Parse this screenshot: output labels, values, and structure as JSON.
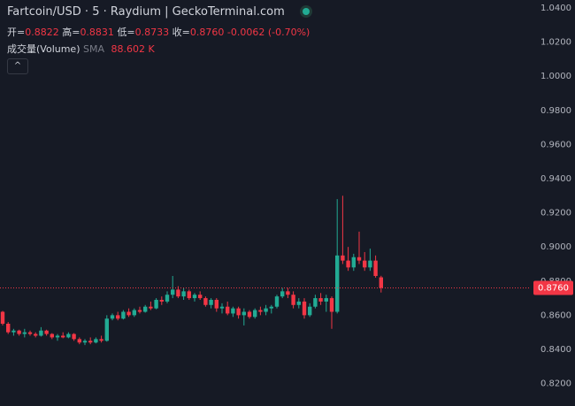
{
  "header": {
    "symbol": "Fartcoin/USD · 5 · Raydium | GeckoTerminal.com",
    "ohlc": [
      {
        "label": "开=",
        "value": "0.8822"
      },
      {
        "label": "高=",
        "value": "0.8831"
      },
      {
        "label": "低=",
        "value": "0.8733"
      },
      {
        "label": "收=",
        "value": "0.8760"
      }
    ],
    "change": "-0.0062 (-0.70%)",
    "volume_label": "成交量(Volume)",
    "sma_label": "SMA",
    "volume_value": "88.602 K"
  },
  "chart_data": {
    "type": "candlestick",
    "up_color": "#22ab94",
    "down_color": "#f23645",
    "grid": false,
    "ylim": [
      0.8068,
      1.0447
    ],
    "yticks": [
      {
        "value": 0.82,
        "label": "0.8200"
      },
      {
        "value": 0.84,
        "label": "0.8400"
      },
      {
        "value": 0.86,
        "label": "0.8600"
      },
      {
        "value": 0.88,
        "label": "0.8800"
      },
      {
        "value": 0.9,
        "label": "0.9000"
      },
      {
        "value": 0.92,
        "label": "0.9200"
      },
      {
        "value": 0.94,
        "label": "0.9400"
      },
      {
        "value": 0.96,
        "label": "0.9600"
      },
      {
        "value": 0.98,
        "label": "0.9800"
      },
      {
        "value": 1.0,
        "label": "1.0000"
      },
      {
        "value": 1.02,
        "label": "1.0200"
      },
      {
        "value": 1.04,
        "label": "1.0400"
      }
    ],
    "price_line": {
      "value": 0.876,
      "label": "0.8760",
      "color": "#f23645"
    },
    "open": [
      0.862,
      0.855,
      0.85,
      0.851,
      0.849,
      0.85,
      0.849,
      0.848,
      0.851,
      0.849,
      0.847,
      0.848,
      0.847,
      0.849,
      0.846,
      0.844,
      0.845,
      0.844,
      0.846,
      0.845,
      0.858,
      0.86,
      0.858,
      0.862,
      0.86,
      0.863,
      0.862,
      0.865,
      0.864,
      0.869,
      0.868,
      0.872,
      0.875,
      0.871,
      0.874,
      0.87,
      0.872,
      0.87,
      0.866,
      0.869,
      0.864,
      0.865,
      0.861,
      0.864,
      0.86,
      0.862,
      0.859,
      0.863,
      0.862,
      0.864,
      0.865,
      0.871,
      0.874,
      0.872,
      0.866,
      0.868,
      0.86,
      0.865,
      0.87,
      0.868,
      0.87,
      0.862,
      0.895,
      0.892,
      0.888,
      0.894,
      0.892,
      0.888,
      0.892,
      0.8822
    ],
    "high": [
      0.8625,
      0.856,
      0.852,
      0.8515,
      0.852,
      0.851,
      0.85,
      0.853,
      0.8515,
      0.8495,
      0.849,
      0.85,
      0.85,
      0.8495,
      0.847,
      0.846,
      0.847,
      0.847,
      0.848,
      0.86,
      0.861,
      0.862,
      0.863,
      0.864,
      0.864,
      0.865,
      0.866,
      0.868,
      0.87,
      0.871,
      0.874,
      0.883,
      0.877,
      0.876,
      0.875,
      0.873,
      0.874,
      0.871,
      0.87,
      0.87,
      0.867,
      0.868,
      0.865,
      0.865,
      0.864,
      0.863,
      0.864,
      0.865,
      0.866,
      0.866,
      0.872,
      0.876,
      0.876,
      0.874,
      0.87,
      0.87,
      0.867,
      0.872,
      0.873,
      0.872,
      0.871,
      0.928,
      0.93,
      0.9,
      0.896,
      0.909,
      0.897,
      0.899,
      0.895,
      0.8831
    ],
    "low": [
      0.854,
      0.849,
      0.848,
      0.848,
      0.847,
      0.848,
      0.847,
      0.8475,
      0.848,
      0.846,
      0.845,
      0.8465,
      0.8465,
      0.845,
      0.843,
      0.8425,
      0.843,
      0.8435,
      0.844,
      0.8445,
      0.857,
      0.857,
      0.8575,
      0.859,
      0.859,
      0.861,
      0.8615,
      0.863,
      0.8635,
      0.866,
      0.867,
      0.87,
      0.87,
      0.869,
      0.869,
      0.868,
      0.869,
      0.865,
      0.864,
      0.862,
      0.861,
      0.86,
      0.859,
      0.858,
      0.854,
      0.858,
      0.858,
      0.86,
      0.86,
      0.861,
      0.864,
      0.87,
      0.87,
      0.864,
      0.864,
      0.858,
      0.859,
      0.864,
      0.866,
      0.862,
      0.852,
      0.861,
      0.89,
      0.886,
      0.886,
      0.89,
      0.886,
      0.886,
      0.882,
      0.8733
    ],
    "close": [
      0.855,
      0.85,
      0.851,
      0.849,
      0.85,
      0.849,
      0.848,
      0.851,
      0.849,
      0.847,
      0.848,
      0.847,
      0.849,
      0.846,
      0.844,
      0.845,
      0.844,
      0.846,
      0.845,
      0.858,
      0.86,
      0.858,
      0.862,
      0.86,
      0.863,
      0.862,
      0.865,
      0.864,
      0.869,
      0.868,
      0.872,
      0.875,
      0.871,
      0.874,
      0.87,
      0.872,
      0.87,
      0.866,
      0.869,
      0.864,
      0.865,
      0.861,
      0.864,
      0.86,
      0.862,
      0.859,
      0.863,
      0.862,
      0.864,
      0.865,
      0.871,
      0.874,
      0.872,
      0.866,
      0.868,
      0.86,
      0.865,
      0.87,
      0.868,
      0.87,
      0.862,
      0.895,
      0.892,
      0.888,
      0.894,
      0.892,
      0.888,
      0.892,
      0.883,
      0.876
    ]
  }
}
